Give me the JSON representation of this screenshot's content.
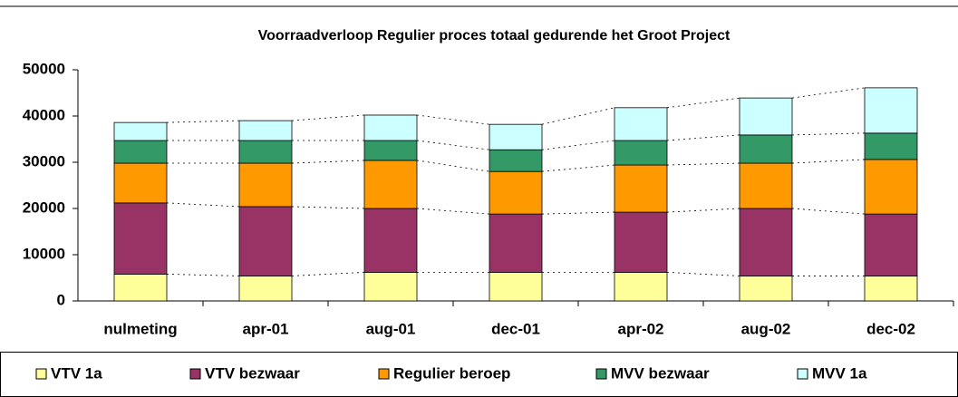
{
  "chart_data": {
    "type": "stacked_bar",
    "title": "Voorraadverloop Regulier proces totaal gedurende het Groot Project",
    "categories": [
      "nulmeting",
      "apr-01",
      "aug-01",
      "dec-01",
      "apr-02",
      "aug-02",
      "dec-02"
    ],
    "series": [
      {
        "name": "VTV 1a",
        "color": "#ffff99",
        "values": [
          5800,
          5400,
          6200,
          6200,
          6200,
          5400,
          5400
        ]
      },
      {
        "name": "VTV bezwaar",
        "color": "#993366",
        "values": [
          15400,
          15000,
          13800,
          12600,
          13000,
          14600,
          13400
        ]
      },
      {
        "name": "Regulier beroep",
        "color": "#ff9900",
        "values": [
          8600,
          9400,
          10400,
          9200,
          10200,
          9800,
          11800
        ]
      },
      {
        "name": "MVV bezwaar",
        "color": "#339966",
        "values": [
          4900,
          4900,
          4300,
          4700,
          5300,
          6100,
          5700
        ]
      },
      {
        "name": "MVV 1a",
        "color": "#ccffff",
        "values": [
          3900,
          4300,
          5500,
          5500,
          7100,
          8000,
          9800
        ]
      }
    ],
    "ylim": [
      0,
      50000
    ],
    "yticks": [
      0,
      10000,
      20000,
      30000,
      40000,
      50000
    ],
    "legend": "bottom"
  }
}
